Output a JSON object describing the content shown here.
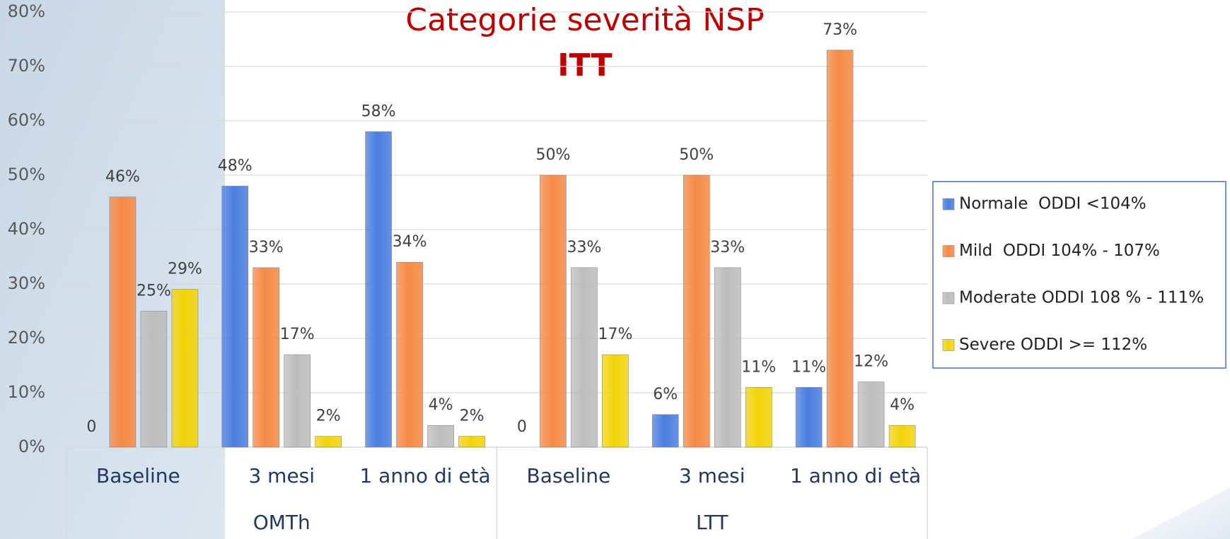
{
  "chart_data": {
    "type": "bar",
    "title": "Categorie severità NSP",
    "subtitle": "ITT",
    "categories": [
      "Baseline",
      "3 mesi",
      "1 anno di età",
      "Baseline",
      "3 mesi",
      "1 anno di età"
    ],
    "groups": [
      "OMTh",
      "LTT"
    ],
    "series": [
      {
        "name": "Normale  ODDI <104%",
        "color": "#4a7ee0",
        "values": [
          0,
          48,
          58,
          0,
          6,
          11
        ],
        "value_labels": [
          "0",
          "48%",
          "58%",
          "0",
          "6%",
          "11%"
        ]
      },
      {
        "name": "Mild  ODDI 104% - 107%",
        "color": "#f58a45",
        "values": [
          46,
          33,
          34,
          50,
          50,
          73
        ],
        "value_labels": [
          "46%",
          "33%",
          "34%",
          "50%",
          "50%",
          "73%"
        ]
      },
      {
        "name": "Moderate ODDI 108 % - 111%",
        "color": "#bdbdbd",
        "values": [
          25,
          17,
          4,
          33,
          33,
          12
        ],
        "value_labels": [
          "25%",
          "17%",
          "4%",
          "33%",
          "33%",
          "12%"
        ]
      },
      {
        "name": "Severe ODDI >= 112%",
        "color": "#f2d40a",
        "values": [
          29,
          2,
          2,
          17,
          11,
          4
        ],
        "value_labels": [
          "29%",
          "2%",
          "2%",
          "17%",
          "11%",
          "4%"
        ]
      }
    ],
    "ylim": [
      0,
      80
    ],
    "yticks": [
      {
        "value": 0,
        "label": "0%"
      },
      {
        "value": 10,
        "label": "10%"
      },
      {
        "value": 20,
        "label": "20%"
      },
      {
        "value": 30,
        "label": "30%"
      },
      {
        "value": 40,
        "label": "40%"
      },
      {
        "value": 50,
        "label": "50%"
      },
      {
        "value": 60,
        "label": "60%"
      },
      {
        "value": 70,
        "label": "70%"
      },
      {
        "value": 80,
        "label": "80%"
      }
    ],
    "grid": true,
    "legend": "right"
  }
}
